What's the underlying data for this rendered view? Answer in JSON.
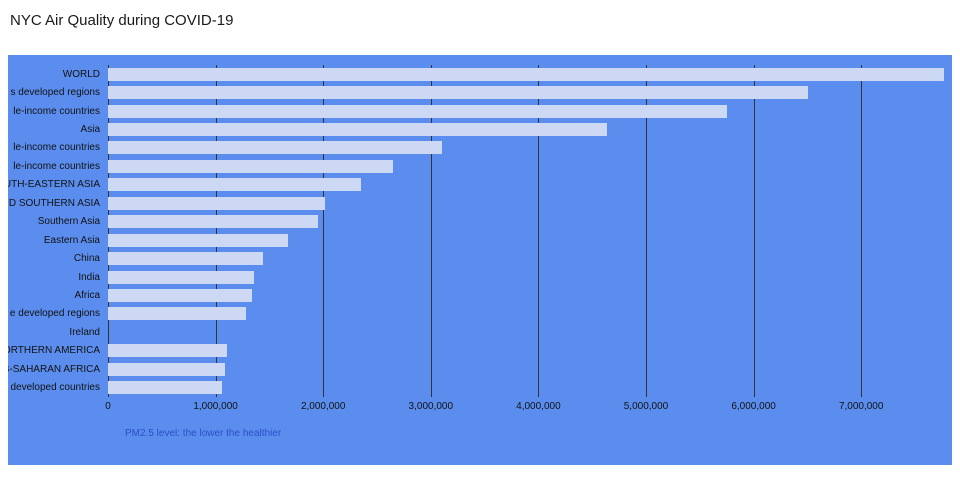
{
  "page": {
    "title": "NYC Air Quality during COVID-19"
  },
  "chart": {
    "background_color": "#5b8dee",
    "bar_color": "#cdd9f4",
    "gridline_color": "#333333",
    "label_color": "#121212",
    "caption_color": "#2a4fc7"
  },
  "chart_data": {
    "type": "bar",
    "orientation": "horizontal",
    "title": "NYC Air Quality during COVID-19",
    "categories": [
      "WORLD",
      "s developed regions",
      "le-income countries",
      "Asia",
      "le-income countries",
      "le-income countries",
      "OUTH-EASTERN ASIA",
      "ND SOUTHERN ASIA",
      "Southern Asia",
      "Eastern Asia",
      "China",
      "India",
      "Africa",
      "e developed regions",
      "Ireland",
      "ORTHERN AMERICA",
      "B-SAHARAN AFRICA",
      "developed countries"
    ],
    "values": [
      7770000,
      6510000,
      5750000,
      4640000,
      3100000,
      2650000,
      2350000,
      2020000,
      1950000,
      1670000,
      1440000,
      1360000,
      1335000,
      1280000,
      0,
      1110000,
      1090000,
      1055000
    ],
    "xlabel": "PM2.5 level: the lower the healthier",
    "ylabel": "",
    "x_tick_labels": [
      "0",
      "1,000,000",
      "2,000,000",
      "3,000,000",
      "4,000,000",
      "5,000,000",
      "6,000,000",
      "7,000,000"
    ],
    "x_tick_values": [
      0,
      1000000,
      2000000,
      3000000,
      4000000,
      5000000,
      6000000,
      7000000
    ],
    "xlim": [
      0,
      7790000
    ],
    "grid": true,
    "legend": "none"
  }
}
